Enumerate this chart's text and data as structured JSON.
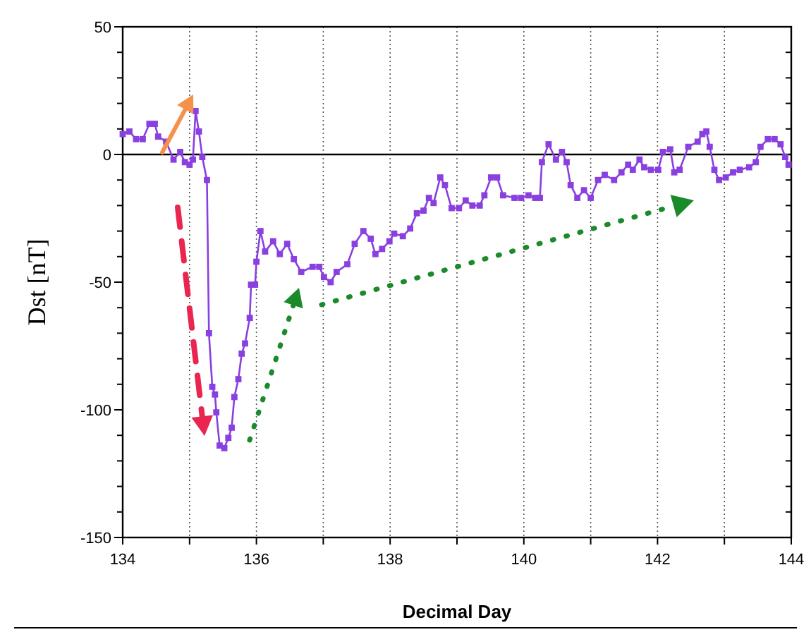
{
  "chart_data": {
    "type": "line",
    "xlabel": "Decimal Day",
    "ylabel": "Dst [nT]",
    "xlim": [
      134,
      144
    ],
    "ylim": [
      -150,
      50
    ],
    "xticks": [
      134,
      {
        "value": 135,
        "label": null
      },
      136,
      {
        "value": 137,
        "label": null
      },
      138,
      {
        "value": 139,
        "label": null
      },
      140,
      {
        "value": 141,
        "label": null
      },
      142,
      {
        "value": 143,
        "label": null
      },
      144
    ],
    "yticks": [
      -150,
      {
        "value": -140,
        "label": null
      },
      {
        "value": -130,
        "label": null
      },
      {
        "value": -120,
        "label": null
      },
      {
        "value": -110,
        "label": null
      },
      -100,
      {
        "value": -90,
        "label": null
      },
      {
        "value": -80,
        "label": null
      },
      {
        "value": -70,
        "label": null
      },
      {
        "value": -60,
        "label": null
      },
      -50,
      {
        "value": -40,
        "label": null
      },
      {
        "value": -30,
        "label": null
      },
      {
        "value": -20,
        "label": null
      },
      {
        "value": -10,
        "label": null
      },
      0,
      {
        "value": 10,
        "label": null
      },
      {
        "value": 20,
        "label": null
      },
      {
        "value": 30,
        "label": null
      },
      {
        "value": 40,
        "label": null
      },
      50
    ],
    "grid": "x",
    "marker": "square",
    "line_style": "solid",
    "ref_lines": [
      {
        "axis": "y",
        "value": 0,
        "color": "#000000",
        "line_style": "solid"
      }
    ],
    "series": [
      {
        "color": "#8a3fe0",
        "x": [
          134.0,
          134.1,
          134.2,
          134.3,
          134.4,
          134.48,
          134.53,
          134.65,
          134.76,
          134.86,
          134.93,
          135.0,
          135.05,
          135.09,
          135.14,
          135.19,
          135.26,
          135.29,
          135.34,
          135.38,
          135.4,
          135.45,
          135.52,
          135.58,
          135.63,
          135.67,
          135.73,
          135.78,
          135.83,
          135.9,
          135.92,
          135.98,
          136.0,
          136.06,
          136.13,
          136.25,
          136.35,
          136.46,
          136.56,
          136.67,
          136.84,
          136.94,
          137.01,
          137.11,
          137.2,
          137.36,
          137.47,
          137.6,
          137.71,
          137.78,
          137.88,
          137.99,
          138.06,
          138.19,
          138.3,
          138.4,
          138.5,
          138.58,
          138.65,
          138.75,
          138.82,
          138.92,
          139.03,
          139.13,
          139.23,
          139.34,
          139.41,
          139.51,
          139.6,
          139.69,
          139.86,
          139.96,
          140.07,
          140.17,
          140.24,
          140.27,
          140.37,
          140.48,
          140.57,
          140.64,
          140.7,
          140.8,
          140.9,
          141.0,
          141.11,
          141.21,
          141.35,
          141.46,
          141.56,
          141.63,
          141.73,
          141.8,
          141.9,
          142.01,
          142.08,
          142.19,
          142.25,
          142.33,
          142.46,
          142.6,
          142.67,
          142.73,
          142.78,
          142.85,
          142.92,
          143.02,
          143.13,
          143.23,
          143.37,
          143.47,
          143.54,
          143.65,
          143.75,
          143.84,
          143.91,
          143.96
        ],
        "values": [
          8,
          9,
          6,
          6,
          12,
          12,
          7,
          5,
          -2,
          1,
          -3,
          -4,
          -2,
          17,
          9,
          -1,
          -10,
          -70,
          -91,
          -94,
          -101,
          -114,
          -115,
          -111,
          -107,
          -95,
          -88,
          -78,
          -74,
          -64,
          -51,
          -51,
          -42,
          -30,
          -38,
          -34,
          -39,
          -35,
          -41,
          -46,
          -44,
          -44,
          -48,
          -50,
          -46,
          -43,
          -35,
          -30,
          -33,
          -39,
          -37,
          -34,
          -31,
          -32,
          -29,
          -23,
          -22,
          -17,
          -19,
          -9,
          -12,
          -21,
          -21,
          -18,
          -20,
          -20,
          -16,
          -9,
          -9,
          -16,
          -17,
          -17,
          -16,
          -17,
          -17,
          -3,
          4,
          -2,
          1,
          -3,
          -12,
          -17,
          -14,
          -17,
          -10,
          -8,
          -10,
          -7,
          -4,
          -6,
          -2,
          -5,
          -6,
          -6,
          1,
          2,
          -7,
          -6,
          3,
          5,
          8,
          9,
          3,
          -6,
          -10,
          -9,
          -7,
          -6,
          -5,
          -3,
          3,
          6,
          6,
          4,
          -1,
          -4
        ]
      }
    ]
  }
}
